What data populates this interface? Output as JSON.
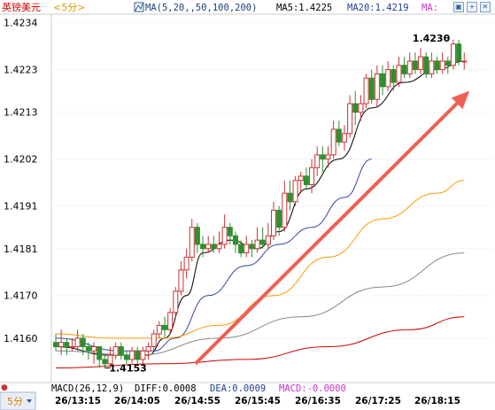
{
  "header": {
    "symbol": "英镑美元",
    "period": "<5分>",
    "ma_label": "MA(5,20,,50,100,200)",
    "ma5_label": "MA5:1.4225",
    "ma20_label": "MA20:1.4219",
    "ma_more_label": "MA:"
  },
  "buttons": [
    "zoom-fit-icon",
    "zoom-in-icon",
    "close-icon"
  ],
  "bottom_bar": {
    "period_select": "5分",
    "macd_text": "MACD(26,12,9)",
    "diff_text": "DIFF:0.0008",
    "dea_text": "DEA:0.0009",
    "macd_value_text": "MACD:-0.0000"
  },
  "colors": {
    "up": "#cc3333",
    "down": "#2f8f2f",
    "ma5": "#000000",
    "ma20": "#3344aa",
    "ma50": "#ff9900",
    "ma100": "#888888",
    "ma200": "#cc0000",
    "arrow": "#ee6055"
  },
  "chart_data": {
    "type": "candlestick",
    "y_ticks": [
      "1.4234",
      "1.4223",
      "1.4213",
      "1.4202",
      "1.4191",
      "1.4181",
      "1.4170",
      "1.4160"
    ],
    "x_ticks": [
      "26/13:15",
      "26/14:05",
      "26/14:55",
      "26/15:45",
      "26/16:35",
      "26/17:25",
      "26/18:15"
    ],
    "ylim": [
      1.415,
      1.4236
    ],
    "annotations": {
      "high": {
        "label": "1.4230",
        "value": 1.423
      },
      "low": {
        "label": "1.4153",
        "value": 1.4153
      }
    },
    "candles": [
      [
        1.4159,
        1.4158,
        1.4161,
        1.4157
      ],
      [
        1.4158,
        1.4159,
        1.4162,
        1.4156
      ],
      [
        1.4159,
        1.4158,
        1.416,
        1.4156
      ],
      [
        1.4158,
        1.4158,
        1.416,
        1.4157
      ],
      [
        1.4158,
        1.416,
        1.4162,
        1.4157
      ],
      [
        1.416,
        1.4158,
        1.4161,
        1.4156
      ],
      [
        1.4158,
        1.4157,
        1.4159,
        1.4155
      ],
      [
        1.4157,
        1.4158,
        1.4159,
        1.4154
      ],
      [
        1.4158,
        1.4155,
        1.4158,
        1.4153
      ],
      [
        1.4155,
        1.4154,
        1.4156,
        1.4153
      ],
      [
        1.4154,
        1.4156,
        1.4158,
        1.4153
      ],
      [
        1.4156,
        1.4158,
        1.4159,
        1.4155
      ],
      [
        1.4158,
        1.4156,
        1.4159,
        1.4155
      ],
      [
        1.4156,
        1.4155,
        1.4157,
        1.4154
      ],
      [
        1.4155,
        1.4157,
        1.4158,
        1.4154
      ],
      [
        1.4157,
        1.4155,
        1.4158,
        1.4154
      ],
      [
        1.4155,
        1.4157,
        1.4158,
        1.4154
      ],
      [
        1.4157,
        1.4158,
        1.4159,
        1.4155
      ],
      [
        1.4158,
        1.4161,
        1.4162,
        1.4157
      ],
      [
        1.4161,
        1.4163,
        1.4164,
        1.416
      ],
      [
        1.4163,
        1.4162,
        1.4165,
        1.416
      ],
      [
        1.4162,
        1.4166,
        1.4167,
        1.4161
      ],
      [
        1.4166,
        1.4171,
        1.4172,
        1.4165
      ],
      [
        1.4171,
        1.4176,
        1.4178,
        1.417
      ],
      [
        1.4176,
        1.4179,
        1.4181,
        1.4174
      ],
      [
        1.4179,
        1.4186,
        1.4188,
        1.4178
      ],
      [
        1.4186,
        1.4182,
        1.4187,
        1.418
      ],
      [
        1.4182,
        1.4181,
        1.4184,
        1.4179
      ],
      [
        1.4181,
        1.4182,
        1.4184,
        1.418
      ],
      [
        1.4182,
        1.4181,
        1.4184,
        1.418
      ],
      [
        1.4181,
        1.4182,
        1.4185,
        1.418
      ],
      [
        1.4182,
        1.4186,
        1.4189,
        1.4181
      ],
      [
        1.4186,
        1.4184,
        1.4187,
        1.4182
      ],
      [
        1.4184,
        1.4182,
        1.4185,
        1.418
      ],
      [
        1.4182,
        1.418,
        1.4183,
        1.4179
      ],
      [
        1.418,
        1.4182,
        1.4184,
        1.4179
      ],
      [
        1.4182,
        1.4181,
        1.4183,
        1.4179
      ],
      [
        1.4181,
        1.4183,
        1.4186,
        1.418
      ],
      [
        1.4183,
        1.4182,
        1.4186,
        1.4181
      ],
      [
        1.4182,
        1.4184,
        1.4187,
        1.4181
      ],
      [
        1.4184,
        1.419,
        1.4192,
        1.4183
      ],
      [
        1.419,
        1.4186,
        1.4191,
        1.4184
      ],
      [
        1.4186,
        1.4194,
        1.4197,
        1.4185
      ],
      [
        1.4194,
        1.4192,
        1.4197,
        1.419
      ],
      [
        1.4192,
        1.4197,
        1.4198,
        1.4191
      ],
      [
        1.4197,
        1.4198,
        1.4199,
        1.4194
      ],
      [
        1.4198,
        1.4196,
        1.42,
        1.4195
      ],
      [
        1.4196,
        1.42,
        1.4202,
        1.4194
      ],
      [
        1.42,
        1.4203,
        1.4205,
        1.4198
      ],
      [
        1.4203,
        1.4202,
        1.4205,
        1.4199
      ],
      [
        1.4202,
        1.4203,
        1.4205,
        1.42
      ],
      [
        1.4203,
        1.4209,
        1.4211,
        1.4202
      ],
      [
        1.4209,
        1.4206,
        1.4211,
        1.4205
      ],
      [
        1.4206,
        1.4208,
        1.421,
        1.4204
      ],
      [
        1.4208,
        1.4215,
        1.4217,
        1.4207
      ],
      [
        1.4215,
        1.4213,
        1.4218,
        1.421
      ],
      [
        1.4213,
        1.4215,
        1.4217,
        1.4211
      ],
      [
        1.4215,
        1.4221,
        1.4222,
        1.4214
      ],
      [
        1.4221,
        1.4216,
        1.4223,
        1.4215
      ],
      [
        1.4216,
        1.4222,
        1.4224,
        1.4214
      ],
      [
        1.4222,
        1.4219,
        1.4224,
        1.4217
      ],
      [
        1.4219,
        1.4223,
        1.4225,
        1.4218
      ],
      [
        1.4223,
        1.422,
        1.4224,
        1.4218
      ],
      [
        1.422,
        1.4224,
        1.4226,
        1.4219
      ],
      [
        1.4224,
        1.4222,
        1.4226,
        1.4221
      ],
      [
        1.4222,
        1.4225,
        1.4227,
        1.4221
      ],
      [
        1.4225,
        1.4223,
        1.4227,
        1.4222
      ],
      [
        1.4223,
        1.4226,
        1.4228,
        1.4222
      ],
      [
        1.4226,
        1.4222,
        1.4227,
        1.4221
      ],
      [
        1.4222,
        1.4225,
        1.4227,
        1.4221
      ],
      [
        1.4225,
        1.4223,
        1.4226,
        1.4222
      ],
      [
        1.4223,
        1.4225,
        1.4227,
        1.4222
      ],
      [
        1.4225,
        1.4224,
        1.4226,
        1.4222
      ],
      [
        1.4224,
        1.4229,
        1.423,
        1.4223
      ],
      [
        1.4229,
        1.4225,
        1.423,
        1.4224
      ],
      [
        1.4225,
        1.4225,
        1.4227,
        1.4223
      ]
    ],
    "ma_lines": {
      "ma5": [
        [
          0,
          1.4158
        ],
        [
          10,
          1.4156
        ],
        [
          17,
          1.4156
        ],
        [
          20,
          1.416
        ],
        [
          24,
          1.417
        ],
        [
          27,
          1.418
        ],
        [
          32,
          1.4183
        ],
        [
          37,
          1.4181
        ],
        [
          41,
          1.4185
        ],
        [
          46,
          1.4195
        ],
        [
          52,
          1.4202
        ],
        [
          58,
          1.4214
        ],
        [
          64,
          1.422
        ],
        [
          70,
          1.4223
        ],
        [
          75,
          1.4225
        ]
      ],
      "ma20": [
        [
          0,
          1.416
        ],
        [
          12,
          1.4157
        ],
        [
          18,
          1.4157
        ],
        [
          22,
          1.416
        ],
        [
          28,
          1.417
        ],
        [
          35,
          1.4177
        ],
        [
          41,
          1.4182
        ],
        [
          47,
          1.4186
        ],
        [
          53,
          1.4193
        ],
        [
          58,
          1.4202
        ]
      ],
      "ma50": [
        [
          0,
          1.4161
        ],
        [
          10,
          1.416
        ],
        [
          20,
          1.416
        ],
        [
          30,
          1.4163
        ],
        [
          40,
          1.417
        ],
        [
          50,
          1.4179
        ],
        [
          60,
          1.4188
        ],
        [
          70,
          1.4194
        ],
        [
          75,
          1.4197
        ]
      ],
      "ma100": [
        [
          0,
          1.4157
        ],
        [
          15,
          1.4156
        ],
        [
          30,
          1.416
        ],
        [
          45,
          1.4165
        ],
        [
          60,
          1.4172
        ],
        [
          75,
          1.418
        ]
      ],
      "ma200": [
        [
          0,
          1.4153
        ],
        [
          20,
          1.4154
        ],
        [
          35,
          1.4155
        ],
        [
          50,
          1.4158
        ],
        [
          65,
          1.4162
        ],
        [
          75,
          1.4165
        ]
      ]
    },
    "arrow": {
      "from": [
        24,
        1.4154
      ],
      "to": [
        75,
        1.4218
      ]
    }
  }
}
